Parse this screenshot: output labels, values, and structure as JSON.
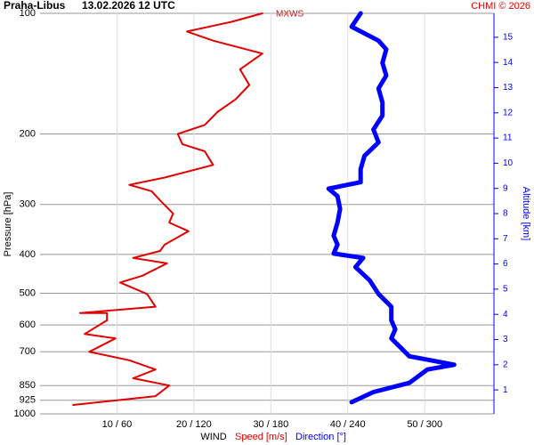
{
  "chart_data": {
    "type": "line",
    "title": "Praha-Libus",
    "subtitle": "13.02.2026 12 UTC",
    "credit": "CHMI © 2026",
    "annotation": "MXWS",
    "ylabel": "Pressure [hPa]",
    "y2label": "Altitude [km]",
    "xlabel": "WIND",
    "ylim": [
      100,
      1000
    ],
    "yscale": "log",
    "yticks": [
      100,
      200,
      300,
      400,
      500,
      600,
      700,
      850,
      925,
      1000
    ],
    "xlim": [
      0,
      59
    ],
    "x2lim": [
      0,
      354
    ],
    "xticks": [
      {
        "value": 10,
        "label": "10 / 60"
      },
      {
        "value": 20,
        "label": "20 / 120"
      },
      {
        "value": 30,
        "label": "30 / 180"
      },
      {
        "value": 40,
        "label": "40 / 240"
      },
      {
        "value": 50,
        "label": "50 / 300"
      }
    ],
    "y2lim": [
      0.05,
      15.95
    ],
    "y2ticks": [
      1,
      2,
      3,
      4,
      5,
      6,
      7,
      8,
      9,
      10,
      11,
      12,
      13,
      14,
      15
    ],
    "grid": true,
    "series": [
      {
        "name": "Speed [m/s]",
        "color": "#e00000",
        "axis": "x",
        "y": [
          950,
          903,
          850,
          815,
          775,
          735,
          700,
          648,
          632,
          584,
          560,
          560,
          540,
          502,
          470,
          452,
          421,
          408,
          392,
          378,
          350,
          333,
          316,
          293,
          278,
          268,
          257,
          239,
          221,
          212,
          200,
          190,
          176,
          164,
          151,
          138,
          126,
          117,
          111,
          105,
          100
        ],
        "x": [
          4.3,
          15,
          16.8,
          12.1,
          15,
          11.6,
          6.4,
          9.8,
          5.8,
          8.7,
          8.7,
          5.2,
          15,
          13.9,
          10.4,
          13.3,
          16.5,
          12.1,
          15.6,
          16.2,
          19.3,
          16.8,
          17.3,
          15.6,
          14.5,
          11.6,
          16.2,
          22.5,
          21.4,
          18.5,
          17.9,
          21.4,
          23.1,
          25.4,
          27.2,
          26,
          28.9,
          22.5,
          19.1,
          24.9,
          28.9
        ]
      },
      {
        "name": "Direction [°]",
        "color": "#0000ff",
        "axis": "x2",
        "y": [
          935,
          882,
          837,
          775,
          754,
          718,
          682,
          648,
          615,
          584,
          540,
          502,
          464,
          430,
          408,
          398,
          378,
          359,
          333,
          308,
          286,
          274,
          264,
          245,
          227,
          210,
          195,
          180,
          167,
          154,
          143,
          133,
          123,
          117,
          108,
          100
        ],
        "x": [
          243,
          260,
          288,
          302,
          323,
          288,
          281,
          274,
          277,
          274,
          274,
          264,
          257,
          246,
          252,
          229,
          232,
          229,
          232,
          234,
          232,
          225,
          250,
          250,
          253,
          264,
          260,
          267,
          267,
          264,
          270,
          267,
          270,
          264,
          243,
          250
        ]
      }
    ]
  }
}
